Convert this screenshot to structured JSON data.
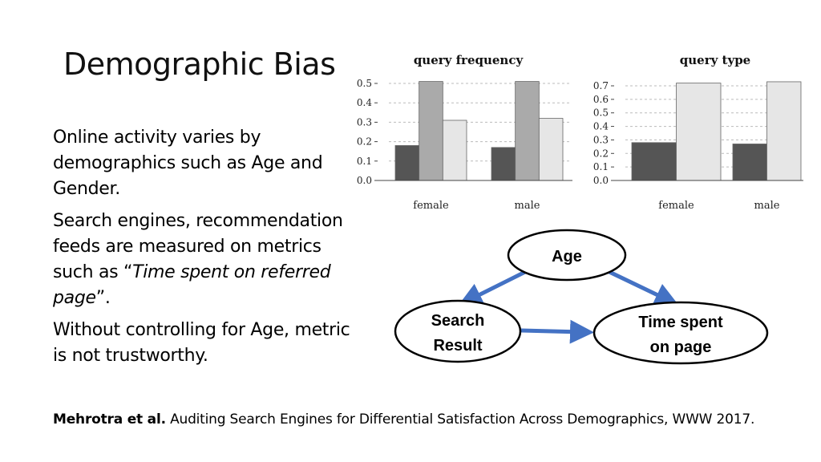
{
  "slide": {
    "title": "Demographic Bias",
    "bullets": [
      {
        "text": "Online activity varies by demographics such as Age and Gender."
      },
      {
        "prefix": "Search engines, recommendation feeds  are measured on metrics such as “",
        "italic": "Time spent on referred page",
        "suffix": "”."
      },
      {
        "text": "Without controlling for Age, metric is not trustworthy."
      }
    ],
    "reference": {
      "authors": "Mehrotra et al.",
      "citation": " Auditing Search Engines for Differential Satisfaction Across Demographics, WWW 2017."
    }
  },
  "chart_data": [
    {
      "type": "bar",
      "title": "query frequency",
      "categories": [
        "female",
        "male"
      ],
      "series": [
        {
          "color": "#555555",
          "values": [
            0.18,
            0.17
          ]
        },
        {
          "color": "#aaaaaa",
          "values": [
            0.51,
            0.51
          ]
        },
        {
          "color": "#e6e6e6",
          "values": [
            0.31,
            0.32
          ]
        }
      ],
      "ylim": [
        0,
        0.5
      ],
      "yticks": [
        "0.0",
        "0.1",
        "0.2",
        "0.3",
        "0.4",
        "0.5"
      ],
      "grid": true
    },
    {
      "type": "bar",
      "title": "query type",
      "categories": [
        "female",
        "male"
      ],
      "series": [
        {
          "color": "#555555",
          "values": [
            0.28,
            0.27
          ]
        },
        {
          "color": "#e6e6e6",
          "values": [
            0.72,
            0.73
          ]
        }
      ],
      "ylim": [
        0,
        0.7
      ],
      "yticks": [
        "0.0",
        "0.1",
        "0.2",
        "0.3",
        "0.4",
        "0.5",
        "0.6",
        "0.7"
      ],
      "grid": true
    }
  ],
  "diagram": {
    "nodes": {
      "age": "Age",
      "search_line1": "Search",
      "search_line2": "Result",
      "time_line1": "Time spent",
      "time_line2": "on page"
    },
    "colors": {
      "arrow": "#4472c4",
      "node_border": "#000000"
    }
  }
}
